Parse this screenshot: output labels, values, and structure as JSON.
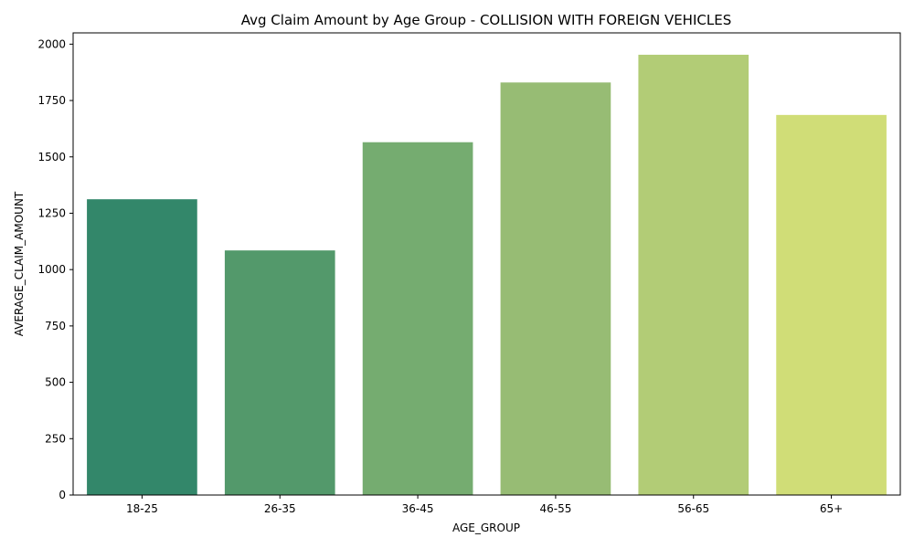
{
  "chart_data": {
    "type": "bar",
    "title": "Avg Claim Amount by Age Group - COLLISION WITH FOREIGN VEHICLES",
    "xlabel": "AGE_GROUP",
    "ylabel": "AVERAGE_CLAIM_AMOUNT",
    "categories": [
      "18-25",
      "26-35",
      "36-45",
      "46-55",
      "56-65",
      "65+"
    ],
    "values": [
      1312,
      1085,
      1565,
      1830,
      1953,
      1686
    ],
    "colors": [
      "#33876a",
      "#53996b",
      "#75ac70",
      "#97bc74",
      "#b2cc76",
      "#d0dd77"
    ],
    "ylim": [
      0,
      2050
    ],
    "yticks": [
      0,
      250,
      500,
      750,
      1000,
      1250,
      1500,
      1750,
      2000
    ],
    "ytick_labels": [
      "0",
      "250",
      "500",
      "750",
      "1000",
      "1250",
      "1500",
      "1750",
      "2000"
    ],
    "grid": false,
    "legend": "none"
  }
}
